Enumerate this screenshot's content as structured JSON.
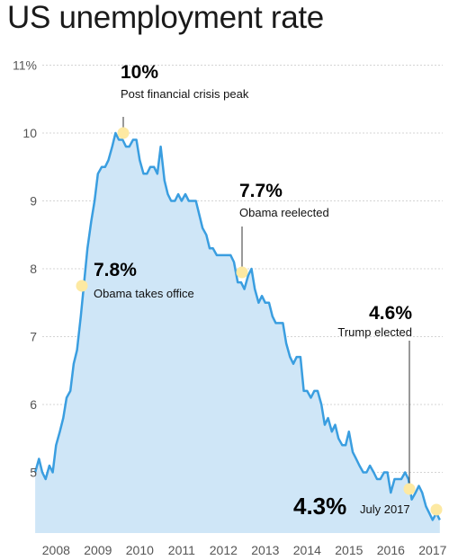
{
  "chart_data": {
    "type": "area",
    "title": "US unemployment rate",
    "xlabel": "",
    "ylabel": "",
    "x_ticks": [
      "2008",
      "2009",
      "2010",
      "2011",
      "2012",
      "2013",
      "2014",
      "2015",
      "2016",
      "2017"
    ],
    "y_ticks": [
      "11%",
      "10",
      "9",
      "8",
      "7",
      "6",
      "5"
    ],
    "xlim": [
      2008.0,
      2017.6
    ],
    "ylim": [
      4.3,
      11.0
    ],
    "grid": true,
    "colors": {
      "line": "#3a9ee0",
      "fill": "#cfe6f7",
      "marker": "#fde9a2",
      "grid": "#d4d4d4"
    },
    "series": [
      {
        "values": [
          [
            2007.83,
            5.0
          ],
          [
            2007.92,
            5.2
          ],
          [
            2008.0,
            5.0
          ],
          [
            2008.08,
            4.9
          ],
          [
            2008.17,
            5.1
          ],
          [
            2008.25,
            5.0
          ],
          [
            2008.33,
            5.4
          ],
          [
            2008.42,
            5.6
          ],
          [
            2008.5,
            5.8
          ],
          [
            2008.58,
            6.1
          ],
          [
            2008.67,
            6.2
          ],
          [
            2008.75,
            6.6
          ],
          [
            2008.83,
            6.8
          ],
          [
            2008.92,
            7.3
          ],
          [
            2009.0,
            7.8
          ],
          [
            2009.08,
            8.3
          ],
          [
            2009.17,
            8.7
          ],
          [
            2009.25,
            9.0
          ],
          [
            2009.33,
            9.4
          ],
          [
            2009.42,
            9.5
          ],
          [
            2009.5,
            9.5
          ],
          [
            2009.58,
            9.6
          ],
          [
            2009.67,
            9.8
          ],
          [
            2009.75,
            10.0
          ],
          [
            2009.83,
            9.9
          ],
          [
            2009.92,
            9.9
          ],
          [
            2010.0,
            9.8
          ],
          [
            2010.08,
            9.8
          ],
          [
            2010.17,
            9.9
          ],
          [
            2010.25,
            9.9
          ],
          [
            2010.33,
            9.6
          ],
          [
            2010.42,
            9.4
          ],
          [
            2010.5,
            9.4
          ],
          [
            2010.58,
            9.5
          ],
          [
            2010.67,
            9.5
          ],
          [
            2010.75,
            9.4
          ],
          [
            2010.83,
            9.8
          ],
          [
            2010.92,
            9.3
          ],
          [
            2011.0,
            9.1
          ],
          [
            2011.08,
            9.0
          ],
          [
            2011.17,
            9.0
          ],
          [
            2011.25,
            9.1
          ],
          [
            2011.33,
            9.0
          ],
          [
            2011.42,
            9.1
          ],
          [
            2011.5,
            9.0
          ],
          [
            2011.58,
            9.0
          ],
          [
            2011.67,
            9.0
          ],
          [
            2011.75,
            8.8
          ],
          [
            2011.83,
            8.6
          ],
          [
            2011.92,
            8.5
          ],
          [
            2012.0,
            8.3
          ],
          [
            2012.08,
            8.3
          ],
          [
            2012.17,
            8.2
          ],
          [
            2012.25,
            8.2
          ],
          [
            2012.33,
            8.2
          ],
          [
            2012.42,
            8.2
          ],
          [
            2012.5,
            8.2
          ],
          [
            2012.58,
            8.1
          ],
          [
            2012.67,
            7.8
          ],
          [
            2012.75,
            7.8
          ],
          [
            2012.83,
            7.7
          ],
          [
            2012.92,
            7.9
          ],
          [
            2013.0,
            8.0
          ],
          [
            2013.08,
            7.7
          ],
          [
            2013.17,
            7.5
          ],
          [
            2013.25,
            7.6
          ],
          [
            2013.33,
            7.5
          ],
          [
            2013.42,
            7.5
          ],
          [
            2013.5,
            7.3
          ],
          [
            2013.58,
            7.2
          ],
          [
            2013.67,
            7.2
          ],
          [
            2013.75,
            7.2
          ],
          [
            2013.83,
            6.9
          ],
          [
            2013.92,
            6.7
          ],
          [
            2014.0,
            6.6
          ],
          [
            2014.08,
            6.7
          ],
          [
            2014.17,
            6.7
          ],
          [
            2014.25,
            6.2
          ],
          [
            2014.33,
            6.2
          ],
          [
            2014.42,
            6.1
          ],
          [
            2014.5,
            6.2
          ],
          [
            2014.58,
            6.2
          ],
          [
            2014.67,
            6.0
          ],
          [
            2014.75,
            5.7
          ],
          [
            2014.83,
            5.8
          ],
          [
            2014.92,
            5.6
          ],
          [
            2015.0,
            5.7
          ],
          [
            2015.08,
            5.5
          ],
          [
            2015.17,
            5.4
          ],
          [
            2015.25,
            5.4
          ],
          [
            2015.33,
            5.6
          ],
          [
            2015.42,
            5.3
          ],
          [
            2015.5,
            5.2
          ],
          [
            2015.58,
            5.1
          ],
          [
            2015.67,
            5.0
          ],
          [
            2015.75,
            5.0
          ],
          [
            2015.83,
            5.1
          ],
          [
            2015.92,
            5.0
          ],
          [
            2016.0,
            4.9
          ],
          [
            2016.08,
            4.9
          ],
          [
            2016.17,
            5.0
          ],
          [
            2016.25,
            5.0
          ],
          [
            2016.33,
            4.7
          ],
          [
            2016.42,
            4.9
          ],
          [
            2016.5,
            4.9
          ],
          [
            2016.58,
            4.9
          ],
          [
            2016.67,
            5.0
          ],
          [
            2016.75,
            4.9
          ],
          [
            2016.83,
            4.6
          ],
          [
            2016.92,
            4.7
          ],
          [
            2017.0,
            4.8
          ],
          [
            2017.08,
            4.7
          ],
          [
            2017.17,
            4.5
          ],
          [
            2017.25,
            4.4
          ],
          [
            2017.33,
            4.3
          ],
          [
            2017.42,
            4.4
          ],
          [
            2017.5,
            4.3
          ]
        ]
      }
    ],
    "annotations": [
      {
        "x": 2009.83,
        "y": 10.0,
        "value": "10%",
        "label": "Post financial crisis peak"
      },
      {
        "x": 2009.0,
        "y": 7.8,
        "value": "7.8%",
        "label": "Obama takes office"
      },
      {
        "x": 2012.83,
        "y": 7.7,
        "value": "7.7%",
        "label": "Obama reelected"
      },
      {
        "x": 2016.83,
        "y": 4.6,
        "value": "4.6%",
        "label": "Trump elected"
      },
      {
        "x": 2017.5,
        "y": 4.3,
        "value": "4.3%",
        "label": "July 2017"
      }
    ]
  }
}
